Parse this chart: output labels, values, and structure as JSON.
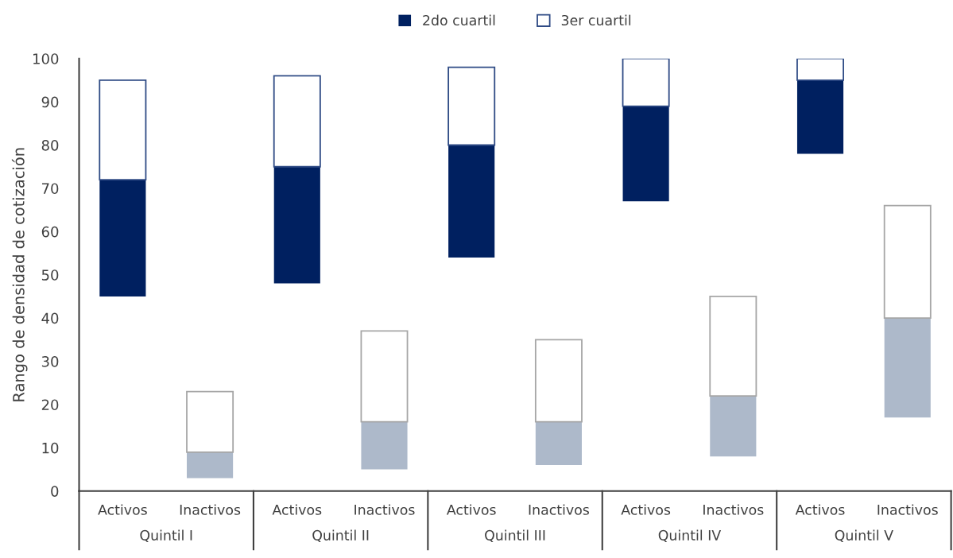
{
  "chart_data": {
    "type": "bar",
    "stacked": true,
    "ylabel": "Rango de densidad de cotización",
    "categories": [
      "Activos",
      "Inactivos",
      "Activos",
      "Inactivos",
      "Activos",
      "Inactivos",
      "Activos",
      "Inactivos",
      "Activos",
      "Inactivos"
    ],
    "annotations": [
      "Quintil I",
      "Quintil II",
      "Quintil III",
      "Quintil IV",
      "Quintil V"
    ],
    "series": [
      {
        "name": "2do cuartil",
        "color": "#002060",
        "base": [
          45,
          3,
          48,
          5,
          54,
          6,
          67,
          8,
          78,
          17
        ],
        "colors": [
          "#002060",
          "#adb9ca",
          "#002060",
          "#adb9ca",
          "#002060",
          "#adb9ca",
          "#002060",
          "#adb9ca",
          "#002060",
          "#adb9ca"
        ],
        "values": [
          27,
          6,
          27,
          11,
          26,
          10,
          22,
          14,
          17,
          23
        ]
      },
      {
        "name": "3er cuartil",
        "color": "#ffffff",
        "colors": [
          "#ffffff",
          "#ffffff",
          "#ffffff",
          "#ffffff",
          "#ffffff",
          "#ffffff",
          "#ffffff",
          "#ffffff",
          "#ffffff",
          "#ffffff"
        ],
        "values": [
          23,
          14,
          21,
          21,
          18,
          19,
          11,
          23,
          5,
          26
        ]
      }
    ],
    "ylim": [
      0,
      100
    ],
    "yticks": [
      0,
      10,
      20,
      30,
      40,
      50,
      60,
      70,
      80,
      90,
      100
    ],
    "legend": "top",
    "grid": false
  }
}
